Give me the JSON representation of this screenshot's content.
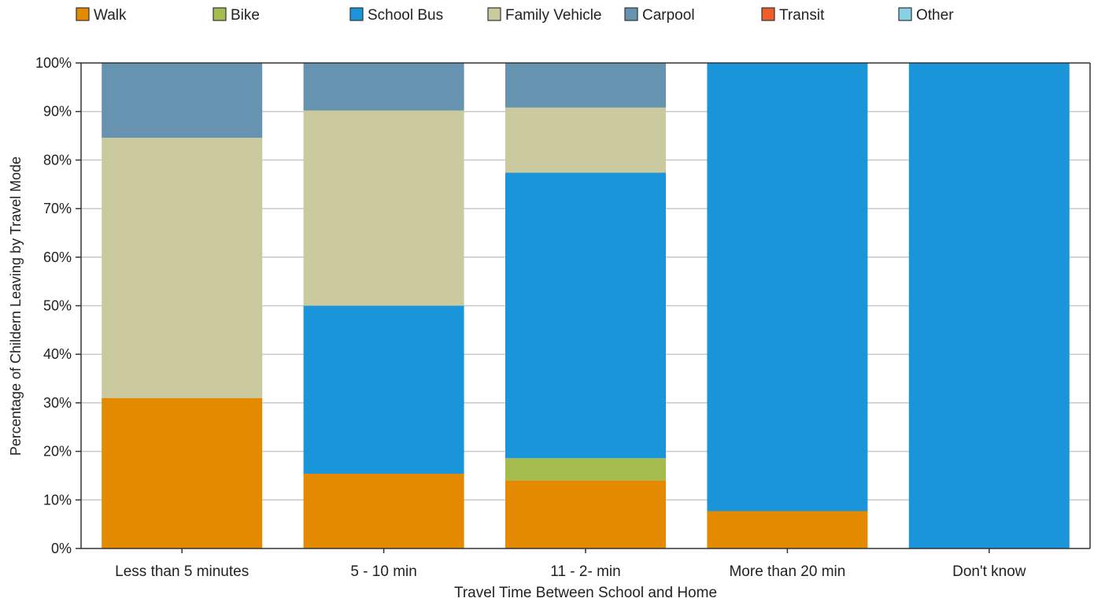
{
  "chart_data": {
    "type": "bar",
    "stacked": true,
    "percent": true,
    "title": "",
    "xlabel": "Travel Time Between School and Home",
    "ylabel": "Percentage of Childern Leaving by Travel Mode",
    "ylim": [
      0,
      100
    ],
    "y_ticks": [
      "0%",
      "10%",
      "20%",
      "30%",
      "40%",
      "50%",
      "60%",
      "70%",
      "80%",
      "90%",
      "100%"
    ],
    "grid": true,
    "legend_position": "top",
    "categories": [
      "Less than 5 minutes",
      "5 - 10 min",
      "11 - 2- min",
      "More than 20 min",
      "Don't know"
    ],
    "series": [
      {
        "name": "Walk",
        "color": "#E38A00",
        "values": [
          31,
          15.4,
          14,
          7.7,
          0
        ]
      },
      {
        "name": "Bike",
        "color": "#A5BC4E",
        "values": [
          0,
          0,
          4.6,
          0,
          0
        ]
      },
      {
        "name": "School Bus",
        "color": "#1B95D9",
        "values": [
          0,
          34.6,
          58.8,
          92.3,
          100
        ]
      },
      {
        "name": "Family Vehicle",
        "color": "#CACA9E",
        "values": [
          53.6,
          40.2,
          13.4,
          0,
          0
        ]
      },
      {
        "name": "Carpool",
        "color": "#6693B0",
        "values": [
          15.4,
          9.8,
          9.2,
          0,
          0
        ]
      },
      {
        "name": "Transit",
        "color": "#F05E27",
        "values": [
          0,
          0,
          0,
          0,
          0
        ]
      },
      {
        "name": "Other",
        "color": "#86D1E4",
        "values": [
          0,
          0,
          0,
          0,
          0
        ]
      }
    ]
  }
}
